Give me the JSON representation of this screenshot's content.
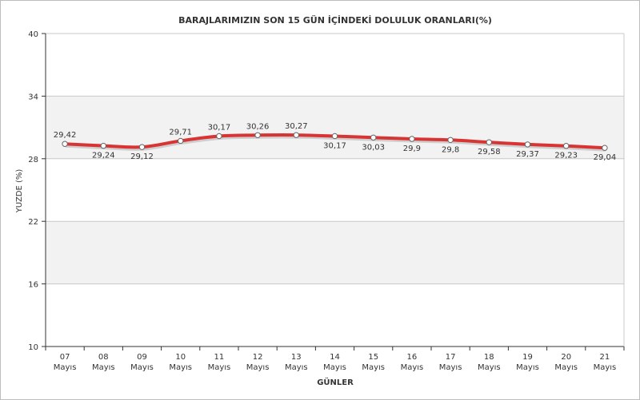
{
  "chart_data": {
    "type": "line",
    "title": "BARAJLARIMIZIN SON 15 GÜN İÇİNDEKİ DOLULUK ORANLARI(%)",
    "xlabel": "GÜNLER",
    "ylabel": "YUZDE (%)",
    "ylim": [
      10,
      40
    ],
    "yticks": [
      "10",
      "16",
      "22",
      "28",
      "34",
      "40"
    ],
    "categories": [
      {
        "day": "07",
        "month": "Mayıs"
      },
      {
        "day": "08",
        "month": "Mayıs"
      },
      {
        "day": "09",
        "month": "Mayıs"
      },
      {
        "day": "10",
        "month": "Mayıs"
      },
      {
        "day": "11",
        "month": "Mayıs"
      },
      {
        "day": "12",
        "month": "Mayıs"
      },
      {
        "day": "13",
        "month": "Mayıs"
      },
      {
        "day": "14",
        "month": "Mayıs"
      },
      {
        "day": "15",
        "month": "Mayıs"
      },
      {
        "day": "16",
        "month": "Mayıs"
      },
      {
        "day": "17",
        "month": "Mayıs"
      },
      {
        "day": "18",
        "month": "Mayıs"
      },
      {
        "day": "19",
        "month": "Mayıs"
      },
      {
        "day": "20",
        "month": "Mayıs"
      },
      {
        "day": "21",
        "month": "Mayıs"
      }
    ],
    "values": [
      29.42,
      29.24,
      29.12,
      29.71,
      30.17,
      30.26,
      30.27,
      30.17,
      30.03,
      29.9,
      29.8,
      29.58,
      29.37,
      29.23,
      29.04
    ],
    "value_labels": [
      "29,42",
      "29,24",
      "29,12",
      "29,71",
      "30,17",
      "30,26",
      "30,27",
      "30,17",
      "30,03",
      "29,9",
      "29,8",
      "29,58",
      "29,37",
      "29,23",
      "29,04"
    ],
    "label_position": [
      "above",
      "below",
      "below",
      "above",
      "above",
      "above",
      "above",
      "below",
      "below",
      "below",
      "below",
      "below",
      "below",
      "below",
      "below"
    ],
    "grid": true,
    "line_color": "#d93434",
    "band_color": "#f2f2f2",
    "grid_color": "#c8c8c8"
  }
}
